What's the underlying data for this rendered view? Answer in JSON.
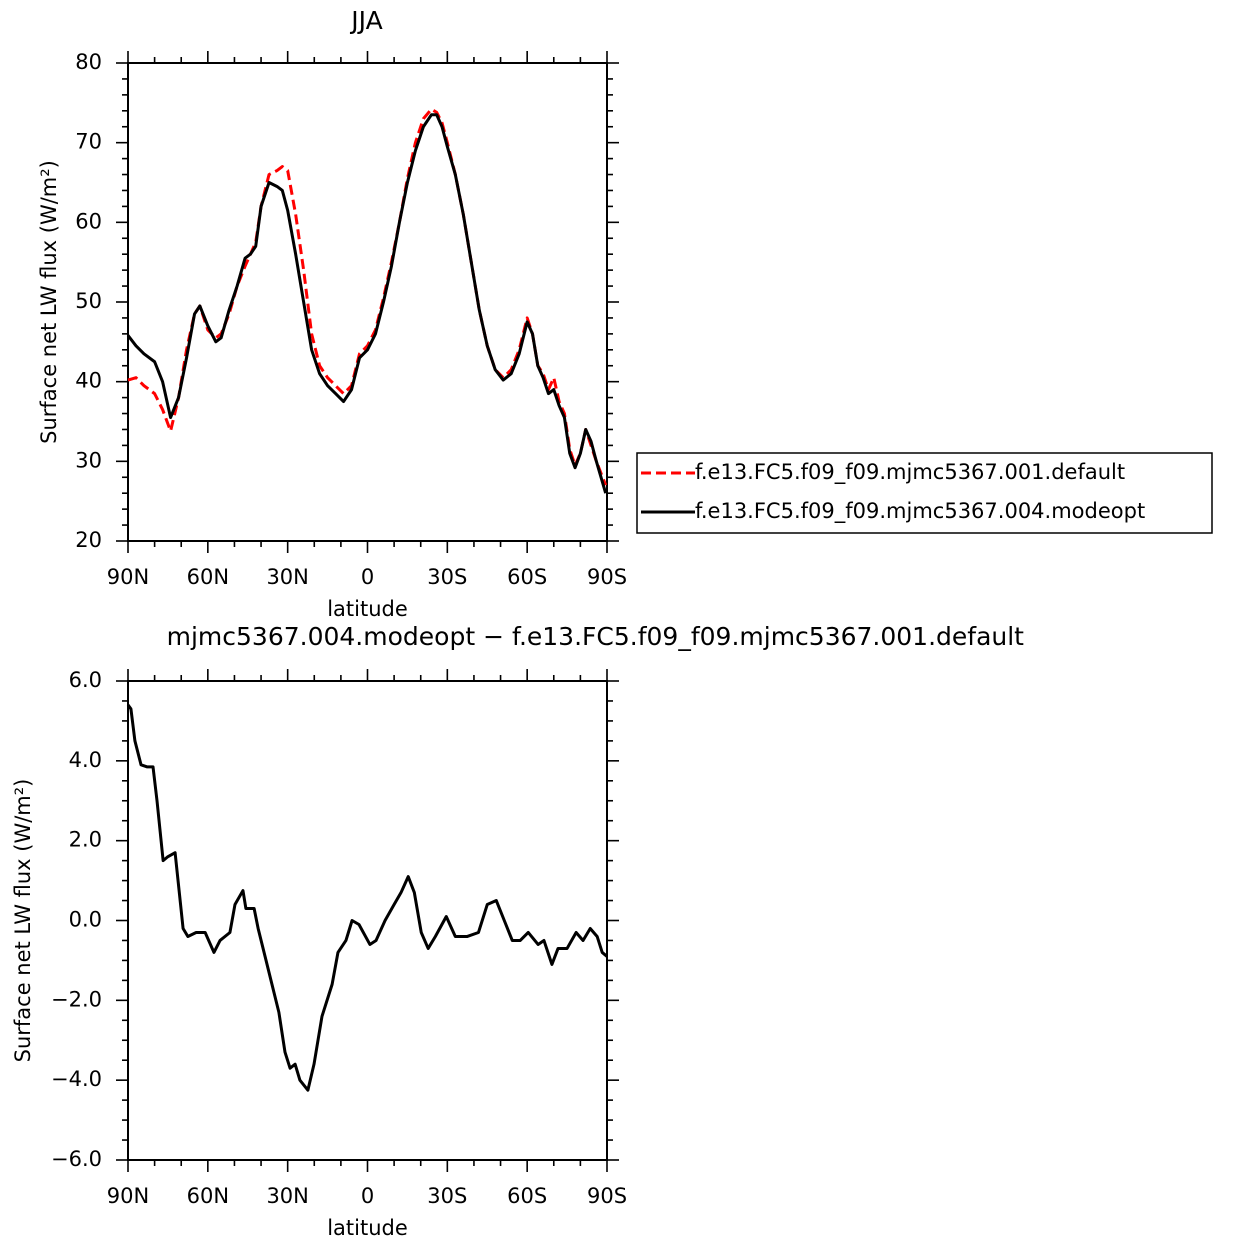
{
  "chart_data": [
    {
      "type": "line",
      "title": "JJA",
      "xlabel": "latitude",
      "ylabel": "Surface net LW flux (W/m²)",
      "xlim": [
        90,
        -90
      ],
      "xticks": [
        {
          "value": 90,
          "label": "90N"
        },
        {
          "value": 60,
          "label": "60N"
        },
        {
          "value": 30,
          "label": "30N"
        },
        0,
        {
          "value": -30,
          "label": "30S"
        },
        {
          "value": -60,
          "label": "60S"
        },
        {
          "value": -90,
          "label": "90S"
        }
      ],
      "ylim": [
        20,
        80
      ],
      "yticks": [
        20,
        30,
        40,
        50,
        60,
        70,
        80
      ],
      "legend": "right",
      "x": [
        90,
        87,
        84,
        80,
        77,
        74,
        71,
        68,
        65,
        63,
        60,
        57,
        55,
        52,
        49,
        46,
        44,
        42,
        40,
        37,
        34,
        32,
        30,
        27,
        24,
        21,
        18,
        15,
        12,
        9,
        6,
        3,
        0,
        -3,
        -6,
        -9,
        -12,
        -15,
        -18,
        -21,
        -24,
        -26,
        -28,
        -30,
        -33,
        -36,
        -39,
        -42,
        -45,
        -48,
        -51,
        -54,
        -57,
        -60,
        -62,
        -64,
        -66,
        -68,
        -70,
        -72,
        -74,
        -76,
        -78,
        -80,
        -82,
        -84,
        -86,
        -89.5
      ],
      "series": [
        {
          "name": "f.e13.FC5.f09_f09.mjmc5367.001.default",
          "color": "#ff0000",
          "linestyle": "dashed",
          "values": [
            40.2,
            40.5,
            39.5,
            38.5,
            36.5,
            33.8,
            38,
            44,
            48.5,
            49.5,
            46.5,
            45.5,
            46,
            48.5,
            52,
            54.5,
            56,
            57.5,
            62,
            66,
            66.5,
            67,
            66.5,
            61,
            54,
            46,
            42,
            40.5,
            39.5,
            38.5,
            39.5,
            43.5,
            44.5,
            46.5,
            50.5,
            55,
            60,
            65.5,
            70,
            73,
            74.2,
            73.8,
            72.5,
            70,
            66,
            61,
            55,
            49,
            44.5,
            41.5,
            40.5,
            41.5,
            44,
            48,
            46,
            42,
            41,
            39,
            40.5,
            37.5,
            36,
            31.5,
            29.5,
            31,
            34,
            32,
            30,
            27
          ]
        },
        {
          "name": "f.e13.FC5.f09_f09.mjmc5367.004.modeopt",
          "color": "#000000",
          "linestyle": "solid",
          "values": [
            45.8,
            44.5,
            43.5,
            42.5,
            40,
            35.5,
            38,
            43,
            48.5,
            49.5,
            47,
            45,
            45.5,
            49,
            52,
            55.5,
            56,
            57,
            62,
            65,
            64.5,
            64,
            61.5,
            56,
            50,
            44,
            41,
            39.5,
            38.5,
            37.5,
            39,
            43,
            44,
            46,
            50,
            54.5,
            60,
            65,
            69,
            72,
            73.5,
            73.5,
            72,
            69.5,
            66,
            61,
            55,
            49,
            44.5,
            41.5,
            40.2,
            41,
            43.5,
            47.5,
            46,
            42,
            40.5,
            38.5,
            39,
            37,
            35.5,
            31,
            29.2,
            31,
            34,
            32.5,
            30,
            26
          ]
        }
      ]
    },
    {
      "type": "line",
      "title": "mjmc5367.004.modeopt − f.e13.FC5.f09_f09.mjmc5367.001.default",
      "xlabel": "latitude",
      "ylabel": "Surface net LW flux (W/m²)",
      "xlim": [
        90,
        -90
      ],
      "xticks": [
        {
          "value": 90,
          "label": "90N"
        },
        {
          "value": 60,
          "label": "60N"
        },
        {
          "value": 30,
          "label": "30N"
        },
        0,
        {
          "value": -30,
          "label": "30S"
        },
        {
          "value": -60,
          "label": "60S"
        },
        {
          "value": -90,
          "label": "90S"
        }
      ],
      "ylim": [
        -6,
        6
      ],
      "yticks": [
        {
          "value": -6,
          "label": "−6.0"
        },
        {
          "value": -4,
          "label": "−4.0"
        },
        {
          "value": -2,
          "label": "−2.0"
        },
        {
          "value": 0,
          "label": "0.0"
        },
        {
          "value": 2,
          "label": "2.0"
        },
        {
          "value": 4,
          "label": "4.0"
        },
        {
          "value": 6,
          "label": "6.0"
        }
      ],
      "x": [
        90,
        88.9,
        87.4,
        85.1,
        82.9,
        80.6,
        79.1,
        76.8,
        75,
        72.3,
        69.3,
        67.5,
        64.4,
        61,
        57.7,
        55.4,
        51.7,
        49.8,
        46.8,
        45.7,
        42.6,
        41.1,
        38.5,
        35.9,
        33.3,
        31,
        29.1,
        27.2,
        25.4,
        22.4,
        20.1,
        17.1,
        13.3,
        11.1,
        8.1,
        5.8,
        3.2,
        -0.9,
        -3.2,
        -6.6,
        -10,
        -12.6,
        -15.3,
        -17.6,
        -20.2,
        -22.8,
        -25.5,
        -29.6,
        -33,
        -37.5,
        -41.7,
        -45,
        -48.4,
        -51.4,
        -54.4,
        -57.4,
        -60.4,
        -64.1,
        -66.3,
        -69.3,
        -71.6,
        -75,
        -78.4,
        -81,
        -83.7,
        -86.3,
        -88.2,
        -90
      ],
      "series": [
        {
          "color": "#000000",
          "linestyle": "solid",
          "values": [
            5.4,
            5.3,
            4.5,
            3.9,
            3.85,
            3.85,
            3.0,
            1.5,
            1.6,
            1.7,
            -0.2,
            -0.4,
            -0.3,
            -0.3,
            -0.8,
            -0.5,
            -0.3,
            0.4,
            0.75,
            0.3,
            0.3,
            -0.2,
            -0.9,
            -1.6,
            -2.3,
            -3.3,
            -3.7,
            -3.6,
            -4.0,
            -4.25,
            -3.6,
            -2.4,
            -1.6,
            -0.8,
            -0.5,
            0.0,
            -0.1,
            -0.6,
            -0.5,
            0.0,
            0.4,
            0.7,
            1.1,
            0.7,
            -0.3,
            -0.7,
            -0.4,
            0.1,
            -0.4,
            -0.4,
            -0.3,
            0.4,
            0.5,
            0.0,
            -0.5,
            -0.5,
            -0.3,
            -0.6,
            -0.5,
            -1.1,
            -0.7,
            -0.7,
            -0.3,
            -0.5,
            -0.2,
            -0.4,
            -0.8,
            -0.9
          ]
        }
      ]
    }
  ]
}
